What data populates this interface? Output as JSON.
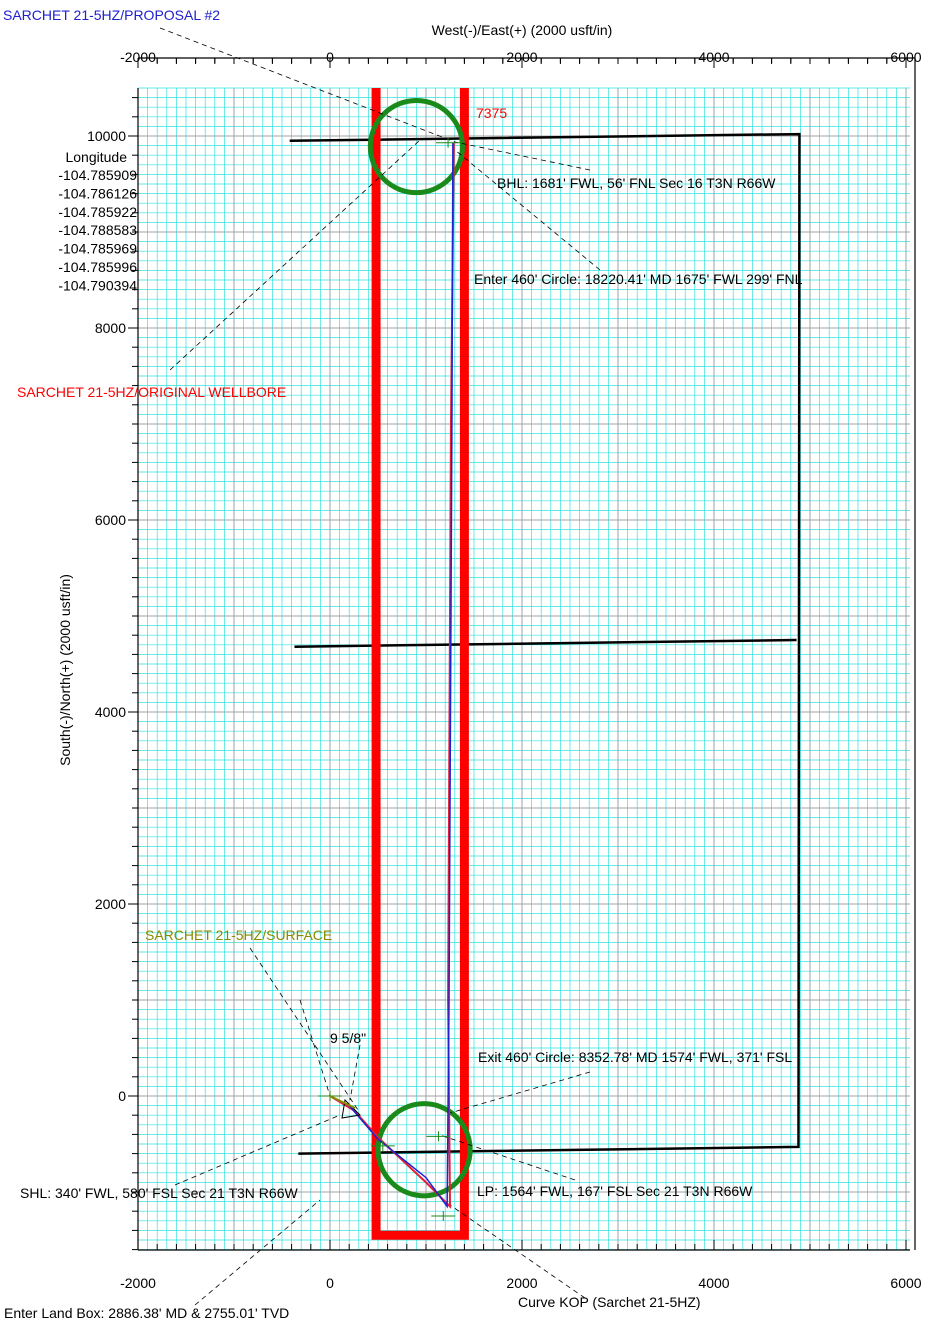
{
  "labels": {
    "proposal": "SARCHET 21-5HZ/PROPOSAL #2",
    "original_wellbore": "SARCHET 21-5HZ/ORIGINAL WELLBORE",
    "surface": "SARCHET 21-5HZ/SURFACE",
    "x_axis_title": "West(-)/East(+) (2000 usft/in)",
    "y_axis_title": "South(-)/North(+) (2000 usft/in)",
    "depth_7375": "7375",
    "casing": "9 5/8\"",
    "bhl": "BHL: 1681' FWL, 56' FNL Sec 16 T3N R66W",
    "enter_circle": "Enter 460' Circle: 18220.41' MD 1675' FWL 299' FNL",
    "exit_circle": "Exit 460' Circle: 8352.78' MD 1574' FWL, 371' FSL",
    "lp": "LP: 1564' FWL, 167' FSL Sec 21 T3N R66W",
    "shl": "SHL: 340' FWL, 580' FSL Sec 21 T3N R66W",
    "enter_land_box": "Enter Land Box: 2886.38' MD & 2755.01' TVD",
    "curve_kop": "Curve KOP (Sarchet 21-5HZ)"
  },
  "longitude": {
    "header": "Longitude",
    "values": [
      "-104.785909",
      "-104.786126",
      "-104.785922",
      "-104.788583",
      "-104.785969",
      "-104.785996",
      "-104.790394"
    ]
  },
  "colors": {
    "grid_minor": "#33e0e0",
    "grid_major": "#a0a0a0",
    "boundary": "#000000",
    "wellbore_corridor": "#ff0000",
    "target_circle": "#1a8a1a",
    "proposal_text": "#2020d0",
    "surface_text": "#8a8a00",
    "plan_line": "#2020d0"
  },
  "chart_data": {
    "type": "plan-view",
    "x_ticks": [
      -2000,
      0,
      2000,
      4000,
      6000
    ],
    "y_ticks": [
      10000,
      8000,
      6000,
      4000,
      2000,
      0
    ],
    "xlim": [
      -2000,
      6000
    ],
    "ylim": [
      -1600,
      10500
    ],
    "lease_boundary": [
      [
        -420,
        9950
      ],
      [
        4890,
        10020
      ],
      [
        4880,
        -530
      ],
      [
        -330,
        -600
      ]
    ],
    "section_line": [
      [
        -370,
        4680
      ],
      [
        4860,
        4750
      ]
    ],
    "corridor": {
      "x_min": 480,
      "x_max": 1400,
      "y_min": -1450,
      "y_max": 10500
    },
    "target_circles": [
      {
        "cx": 900,
        "cy": 9890,
        "r": 480
      },
      {
        "cx": 980,
        "cy": -560,
        "r": 480
      }
    ],
    "planned_wellpath": [
      [
        0,
        0
      ],
      [
        200,
        -100
      ],
      [
        500,
        -450
      ],
      [
        1000,
        -850
      ],
      [
        1220,
        -1150
      ],
      [
        1240,
        1000
      ],
      [
        1270,
        7000
      ],
      [
        1280,
        9930
      ]
    ],
    "actual_wellpath": [
      [
        0,
        0
      ],
      [
        250,
        -150
      ],
      [
        520,
        -450
      ],
      [
        1000,
        -900
      ],
      [
        1250,
        -1150
      ],
      [
        1230,
        1000
      ],
      [
        1260,
        7000
      ],
      [
        1290,
        9930
      ]
    ]
  }
}
